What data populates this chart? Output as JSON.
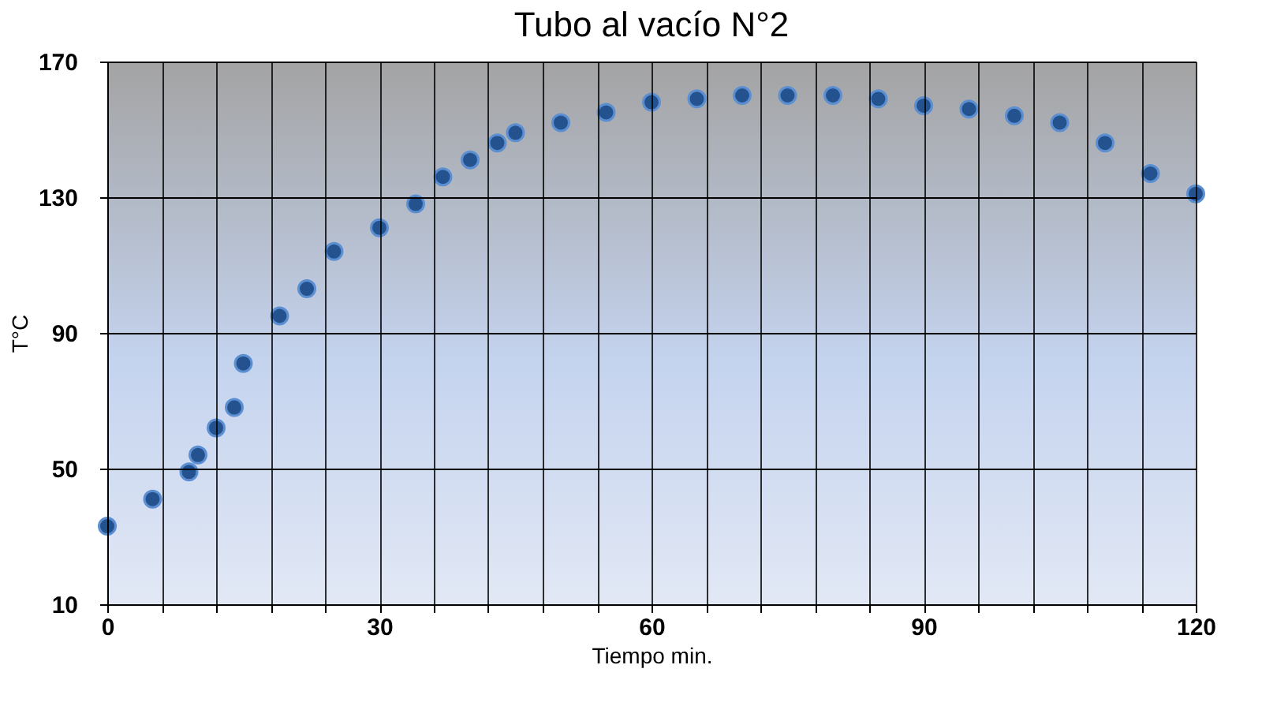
{
  "chart_data": {
    "type": "scatter",
    "title": "Tubo al vacío N°2",
    "xlabel": "Tiempo min.",
    "ylabel": "T°C",
    "x": [
      0,
      5,
      9,
      10,
      12,
      14,
      15,
      19,
      22,
      25,
      30,
      34,
      37,
      40,
      43,
      45,
      50,
      55,
      60,
      65,
      70,
      75,
      80,
      85,
      90,
      95,
      100,
      105,
      110,
      115,
      120
    ],
    "series": [
      {
        "color": "#24528f",
        "values": [
          33,
          41,
          49,
          54,
          62,
          68,
          81,
          95,
          103,
          114,
          121,
          128,
          136,
          141,
          146,
          149,
          152,
          155,
          158,
          159,
          160,
          160,
          160,
          159,
          157,
          156,
          154,
          152,
          146,
          137,
          131
        ]
      }
    ],
    "xlim": [
      0,
      120
    ],
    "ylim": [
      10,
      170
    ],
    "xticks": [
      0,
      {
        "value": 6,
        "label": null
      },
      {
        "value": 12,
        "label": null
      },
      {
        "value": 18,
        "label": null
      },
      {
        "value": 24,
        "label": null
      },
      30,
      {
        "value": 36,
        "label": null
      },
      {
        "value": 42,
        "label": null
      },
      {
        "value": 48,
        "label": null
      },
      {
        "value": 54,
        "label": null
      },
      60,
      {
        "value": 66,
        "label": null
      },
      {
        "value": 72,
        "label": null
      },
      {
        "value": 78,
        "label": null
      },
      {
        "value": 84,
        "label": null
      },
      90,
      {
        "value": 96,
        "label": null
      },
      {
        "value": 102,
        "label": null
      },
      {
        "value": 108,
        "label": null
      },
      {
        "value": 114,
        "label": null
      },
      120
    ],
    "yticks": [
      10,
      50,
      90,
      130,
      170
    ],
    "grid": true,
    "marker": "circle"
  }
}
